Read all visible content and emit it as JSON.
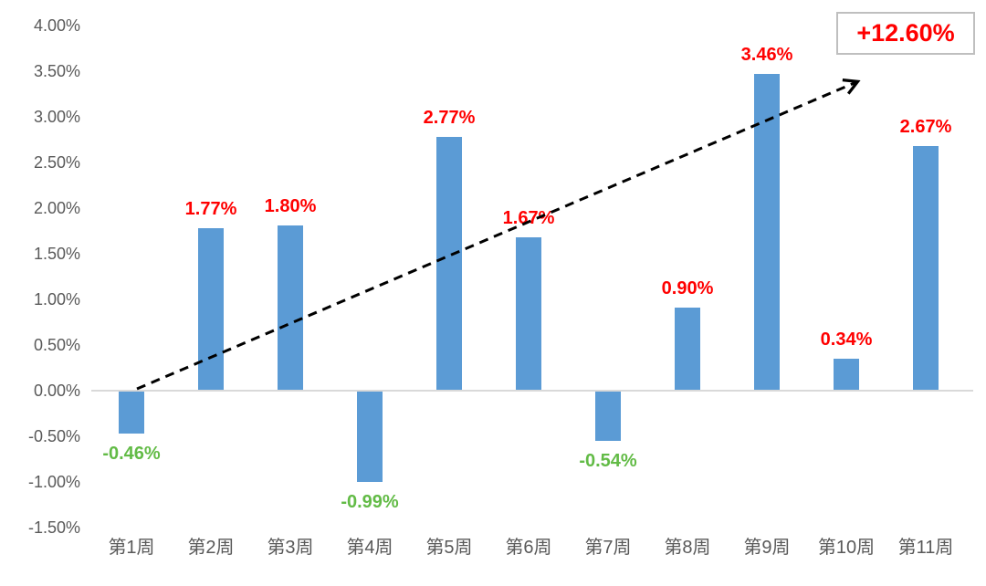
{
  "chart_data": {
    "type": "bar",
    "categories": [
      "第1周",
      "第2周",
      "第3周",
      "第4周",
      "第5周",
      "第6周",
      "第7周",
      "第8周",
      "第9周",
      "第10周",
      "第11周"
    ],
    "values": [
      -0.46,
      1.77,
      1.8,
      -0.99,
      2.77,
      1.67,
      -0.54,
      0.9,
      3.46,
      0.34,
      2.67
    ],
    "value_labels": [
      "-0.46%",
      "1.77%",
      "1.80%",
      "-0.99%",
      "2.77%",
      "1.67%",
      "-0.54%",
      "0.90%",
      "3.46%",
      "0.34%",
      "2.67%"
    ],
    "title": "",
    "xlabel": "",
    "ylabel": "",
    "ylim": [
      -1.5,
      4.0
    ],
    "ytick_step": 0.5,
    "ytick_labels": [
      "4.00%",
      "3.50%",
      "3.00%",
      "2.50%",
      "2.00%",
      "1.50%",
      "1.00%",
      "0.50%",
      "0.00%",
      "-0.50%",
      "-1.00%",
      "-1.50%"
    ],
    "grid": false,
    "legend": "none",
    "bar_color": "#5B9BD5",
    "positive_label_color": "#FF0000",
    "negative_label_color": "#62BB46",
    "axis_label_color": "#595959",
    "zero_line_color": "#D9D9D9",
    "trend_arrow": {
      "style": "dashed",
      "color": "#000000"
    },
    "annotation": {
      "text": "+12.60%",
      "text_color": "#FF0000",
      "border_color": "#BFBFBF",
      "background": "#FFFFFF"
    }
  }
}
